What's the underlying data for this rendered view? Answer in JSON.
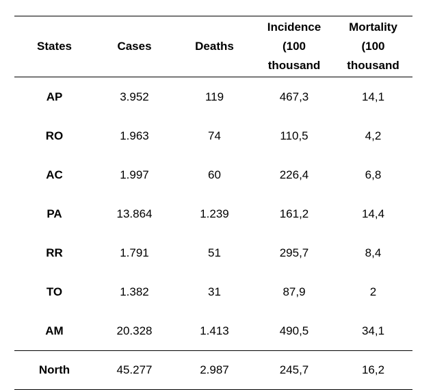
{
  "table": {
    "headers": [
      [
        "States"
      ],
      [
        "Cases"
      ],
      [
        "Deaths"
      ],
      [
        "Incidence",
        "(100",
        "thousand"
      ],
      [
        "Mortality",
        "(100",
        "thousand"
      ]
    ],
    "rows": [
      [
        "AP",
        "3.952",
        "119",
        "467,3",
        "14,1"
      ],
      [
        "RO",
        "1.963",
        "74",
        "110,5",
        "4,2"
      ],
      [
        "AC",
        "1.997",
        "60",
        "226,4",
        "6,8"
      ],
      [
        "PA",
        "13.864",
        "1.239",
        "161,2",
        "14,4"
      ],
      [
        "RR",
        "1.791",
        "51",
        "295,7",
        "8,4"
      ],
      [
        "TO",
        "1.382",
        "31",
        "87,9",
        "2"
      ],
      [
        "AM",
        "20.328",
        "1.413",
        "490,5",
        "34,1"
      ]
    ],
    "total": [
      "North",
      "45.277",
      "2.987",
      "245,7",
      "16,2"
    ]
  }
}
